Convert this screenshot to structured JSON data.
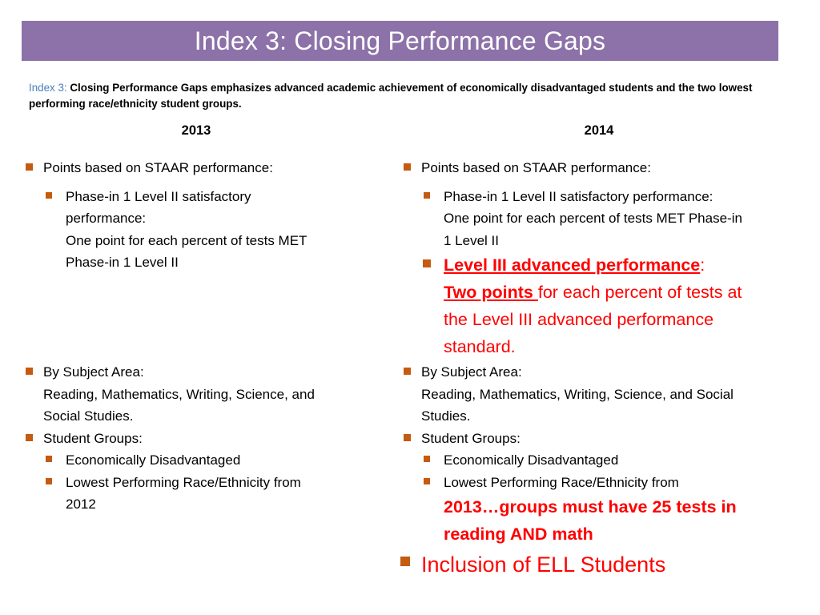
{
  "title": "Index 3: Closing Performance Gaps",
  "intro": {
    "label": "Index 3:",
    "text": "Closing Performance Gaps emphasizes advanced academic achievement of economically disadvantaged students and the two lowest performing race/ethnicity student groups."
  },
  "columns": {
    "left": {
      "year": "2013",
      "points_heading": "Points based on STAAR performance:",
      "phase_in_line1": "Phase-in 1 Level II satisfactory",
      "phase_in_line2": "performance:",
      "phase_in_line3": "One point for each percent of tests MET",
      "phase_in_line4": "Phase-in 1 Level II",
      "subject_heading": "By Subject Area:",
      "subject_line1": "Reading, Mathematics, Writing, Science, and",
      "subject_line2": "Social Studies.",
      "groups_heading": "Student Groups:",
      "group1": "Economically Disadvantaged",
      "group2_line1": "Lowest Performing Race/Ethnicity from",
      "group2_line2": "2012"
    },
    "right": {
      "year": "2014",
      "points_heading": "Points based on STAAR performance:",
      "phase_in_line1": "Phase-in 1 Level II satisfactory performance:",
      "phase_in_line2": "One point for each percent of tests MET Phase-in",
      "phase_in_line3": "1 Level II",
      "level3_heading": "Level III advanced performance",
      "level3_colon": ":",
      "level3_two_points": "Two points ",
      "level3_rest1": "for each percent of tests at",
      "level3_rest2": "the Level III advanced performance",
      "level3_rest3": "standard.",
      "subject_heading": "By Subject Area:",
      "subject_line1": "Reading, Mathematics, Writing, Science, and Social",
      "subject_line2": "Studies.",
      "groups_heading": "Student Groups:",
      "group1": "Economically Disadvantaged",
      "group2_line1": "Lowest Performing Race/Ethnicity from",
      "group2_red1": "2013…groups must have 25 tests in",
      "group2_red2": "reading AND math",
      "ell": "Inclusion of ELL Students"
    }
  },
  "colors": {
    "title_bar": "#8c72a8",
    "bullet": "#c55a11",
    "intro_label": "#4a7ebb",
    "highlight": "#ff0000"
  },
  "icons": {
    "bullet": "square-bullet-icon"
  }
}
